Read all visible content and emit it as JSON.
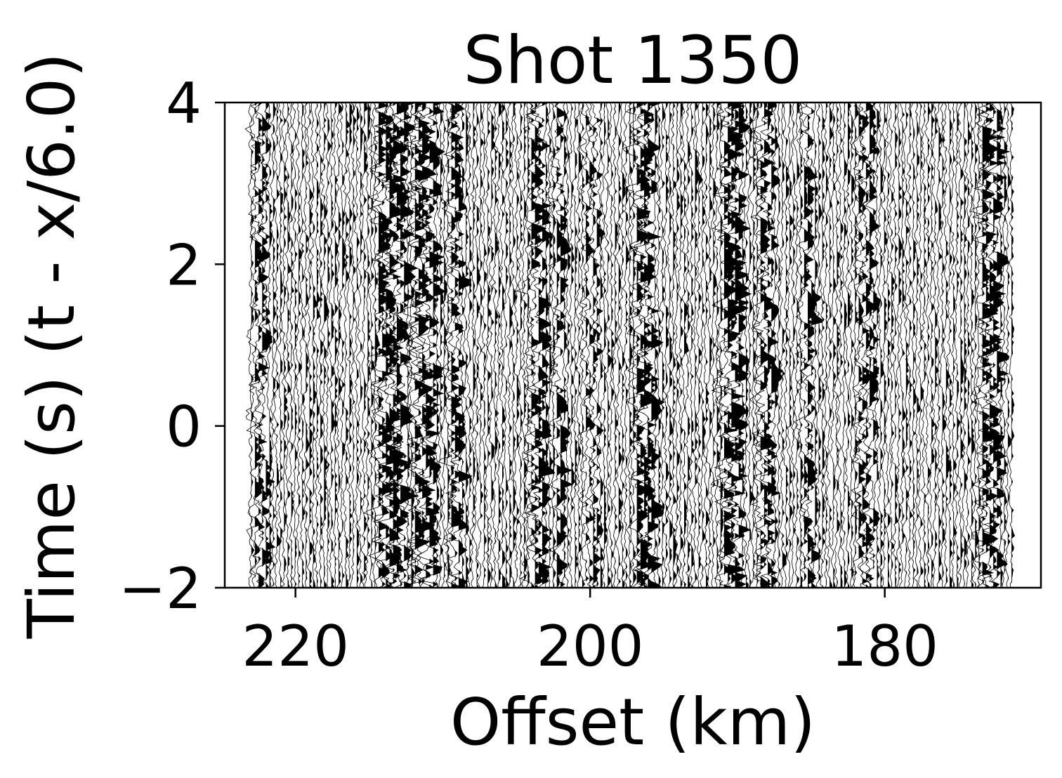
{
  "chart_data": {
    "type": "wiggle",
    "title": "Shot 1350",
    "xlabel": "Offset (km)",
    "ylabel": "Time (s) (t - x/6.0)",
    "x_reversed": true,
    "xlim": [
      224.8,
      169.4
    ],
    "ylim": [
      -2,
      4
    ],
    "x_ticks": [
      220,
      200,
      180
    ],
    "x_tick_labels": [
      "220",
      "200",
      "180"
    ],
    "y_ticks": [
      4,
      2,
      0,
      -2
    ],
    "y_tick_labels": [
      "4",
      "2",
      "0",
      "−2"
    ],
    "traces": {
      "offset_start_km": 223.0,
      "offset_end_km": 171.4,
      "count": 210
    },
    "noisy_bands_km": [
      [
        214.5,
        212.5,
        0.9
      ],
      [
        212.0,
        210.5,
        1.0
      ],
      [
        209.5,
        208.7,
        0.8
      ],
      [
        204.0,
        203.2,
        0.8
      ],
      [
        202.5,
        201.8,
        0.7
      ],
      [
        197.0,
        195.8,
        0.9
      ],
      [
        191.0,
        189.8,
        1.0
      ],
      [
        188.5,
        187.6,
        0.8
      ],
      [
        173.6,
        172.2,
        0.9
      ],
      [
        181.8,
        180.6,
        0.6
      ],
      [
        185.5,
        184.8,
        0.6
      ],
      [
        200.5,
        199.5,
        0.5
      ],
      [
        222.8,
        222.0,
        0.6
      ]
    ],
    "colors": {
      "trace": "#000000",
      "axes": "#000000",
      "background": "#ffffff"
    },
    "grid": false
  }
}
